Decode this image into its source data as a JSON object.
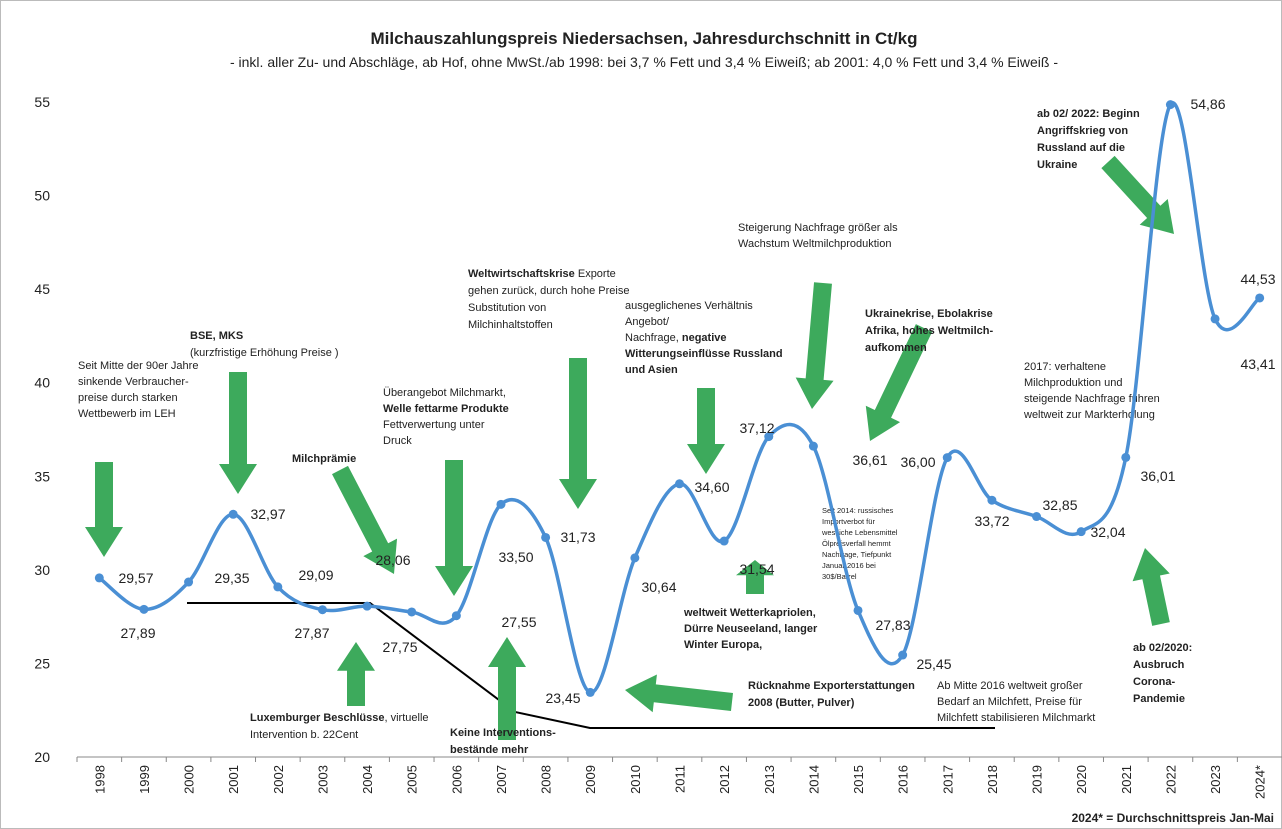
{
  "chart_data": {
    "type": "line",
    "title": "Milchauszahlungspreis Niedersachsen, Jahresdurchschnitt in Ct/kg",
    "subtitle": "- inkl. aller Zu- und Abschläge, ab Hof, ohne MwSt./ab 1998: bei 3,7 % Fett und 3,4 % Eiweiß; ab 2001: 4,0 % Fett und 3,4 % Eiweiß -",
    "footnote": "2024* = Durchschnittspreis Jan-Mai",
    "categories": [
      "1998",
      "1999",
      "2000",
      "2001",
      "2002",
      "2003",
      "2004",
      "2005",
      "2006",
      "2007",
      "2008",
      "2009",
      "2010",
      "2011",
      "2012",
      "2013",
      "2014",
      "2015",
      "2016",
      "2017",
      "2018",
      "2019",
      "2020",
      "2021",
      "2022",
      "2023",
      "2024*"
    ],
    "series": [
      {
        "name": "Milchauszahlungspreis",
        "color": "#4a8fd4",
        "values": [
          29.57,
          27.89,
          29.35,
          32.97,
          29.09,
          27.87,
          28.06,
          27.75,
          27.55,
          33.5,
          31.73,
          23.45,
          30.64,
          34.6,
          31.54,
          37.12,
          36.61,
          27.83,
          25.45,
          36.0,
          33.72,
          32.85,
          32.04,
          36.01,
          54.86,
          43.41,
          44.53
        ],
        "value_labels": [
          "29,57",
          "27,89",
          "29,35",
          "32,97",
          "29,09",
          "27,87",
          "28,06",
          "27,75",
          "27,55",
          "33,50",
          "31,73",
          "23,45",
          "30,64",
          "34,60",
          "31,54",
          "37,12",
          "36,61",
          "27,83",
          "25,45",
          "36,00",
          "33,72",
          "32,85",
          "32,04",
          "36,01",
          "54,86",
          "43,41",
          "44,53"
        ]
      }
    ],
    "ylim": [
      20,
      55
    ],
    "yticks": [
      20,
      25,
      30,
      35,
      40,
      45,
      50,
      55
    ],
    "grid": false,
    "annotations": [
      [
        [
          {
            "text": "Seit Mitte der 90er Jahre"
          }
        ],
        [
          {
            "text": "sinkende Verbraucher-"
          }
        ],
        [
          {
            "text": "preise durch starken"
          }
        ],
        [
          {
            "text": "Wettbewerb im LEH"
          }
        ]
      ],
      [
        [
          {
            "text": "BSE, MKS",
            "bold": true
          }
        ],
        [
          {
            "text": "(kurzfristige Erhöhung Preise )"
          }
        ]
      ],
      [
        [
          {
            "text": "Milchprämie",
            "bold": true
          }
        ]
      ],
      [
        [
          {
            "text": "Überangebot Milchmarkt,"
          }
        ],
        [
          {
            "text": "Welle fettarme Produkte",
            "bold": true
          }
        ],
        [
          {
            "text": "Fettverwertung unter"
          }
        ],
        [
          {
            "text": "Druck"
          }
        ]
      ],
      [
        [
          {
            "text": "Weltwirtschaftskrise",
            "bold": true
          },
          {
            "text": "  Exporte"
          }
        ],
        [
          {
            "text": "gehen zurück, durch hohe Preise"
          }
        ],
        [
          {
            "text": "Substitution von"
          }
        ],
        [
          {
            "text": "Milchinhaltstoffen"
          }
        ]
      ],
      [
        [
          {
            "text": "ausgeglichenes Verhältnis"
          }
        ],
        [
          {
            "text": "Angebot/"
          }
        ],
        [
          {
            "text": "Nachfrage, "
          },
          {
            "text": "negative",
            "bold": true
          }
        ],
        [
          {
            "text": "Witterungseinflüsse Russland",
            "bold": true
          }
        ],
        [
          {
            "text": "und Asien",
            "bold": true
          }
        ]
      ],
      [
        [
          {
            "text": "Steigerung Nachfrage größer als"
          }
        ],
        [
          {
            "text": "Wachstum Weltmilchproduktion"
          }
        ]
      ],
      [
        [
          {
            "text": "Ukrainekrise, Ebolakrise",
            "bold": true
          }
        ],
        [
          {
            "text": "Afrika, hohes Weltmilch-",
            "bold": true
          }
        ],
        [
          {
            "text": "aufkommen",
            "bold": true
          }
        ]
      ],
      [
        [
          {
            "text": "2017: verhaltene"
          }
        ],
        [
          {
            "text": "Milchproduktion und"
          }
        ],
        [
          {
            "text": "steigende Nachfrage führen"
          }
        ],
        [
          {
            "text": "weltweit zur Markterholung"
          }
        ]
      ],
      [
        [
          {
            "text": "ab 02/ 2022: Beginn",
            "bold": true
          }
        ],
        [
          {
            "text": "Angriffskrieg von",
            "bold": true
          }
        ],
        [
          {
            "text": "Russland auf die",
            "bold": true
          }
        ],
        [
          {
            "text": "Ukraine",
            "bold": true
          }
        ]
      ],
      [
        [
          {
            "text": "Seit 2014: russisches"
          }
        ],
        [
          {
            "text": "Importverbot für"
          }
        ],
        [
          {
            "text": "westliche Lebensmittel"
          }
        ],
        [
          {
            "text": "Ölpreisverfall hemmt"
          }
        ],
        [
          {
            "text": "Nachfrage, Tiefpunkt"
          }
        ],
        [
          {
            "text": "Januar 2016 bei"
          }
        ],
        [
          {
            "text": "30$/Barrel"
          }
        ]
      ],
      [
        [
          {
            "text": "weltweit Wetterkapriolen,",
            "bold": true
          }
        ],
        [
          {
            "text": "Dürre Neuseeland, langer",
            "bold": true
          }
        ],
        [
          {
            "text": "Winter Europa,",
            "bold": true
          }
        ]
      ],
      [
        [
          {
            "text": "Rücknahme Exporterstattungen",
            "bold": true
          }
        ],
        [
          {
            "text": "2008 (Butter, Pulver)",
            "bold": true
          }
        ]
      ],
      [
        [
          {
            "text": "Ab Mitte 2016 weltweit großer"
          }
        ],
        [
          {
            "text": "Bedarf an Milchfett, Preise für"
          }
        ],
        [
          {
            "text": "Milchfett stabilisieren  Milchmarkt"
          }
        ]
      ],
      [
        [
          {
            "text": "ab 02/2020:",
            "bold": true
          }
        ],
        [
          {
            "text": "Ausbruch",
            "bold": true
          }
        ],
        [
          {
            "text": "Corona-",
            "bold": true
          }
        ],
        [
          {
            "text": "Pandemie",
            "bold": true
          }
        ]
      ],
      [
        [
          {
            "text": "Luxemburger Beschlüsse",
            "bold": true
          },
          {
            "text": ", virtuelle"
          }
        ],
        [
          {
            "text": "Intervention b. 22Cent"
          }
        ]
      ],
      [
        [
          {
            "text": "Keine Interventions-",
            "bold": true
          }
        ],
        [
          {
            "text": "bestände mehr",
            "bold": true
          }
        ]
      ]
    ]
  }
}
